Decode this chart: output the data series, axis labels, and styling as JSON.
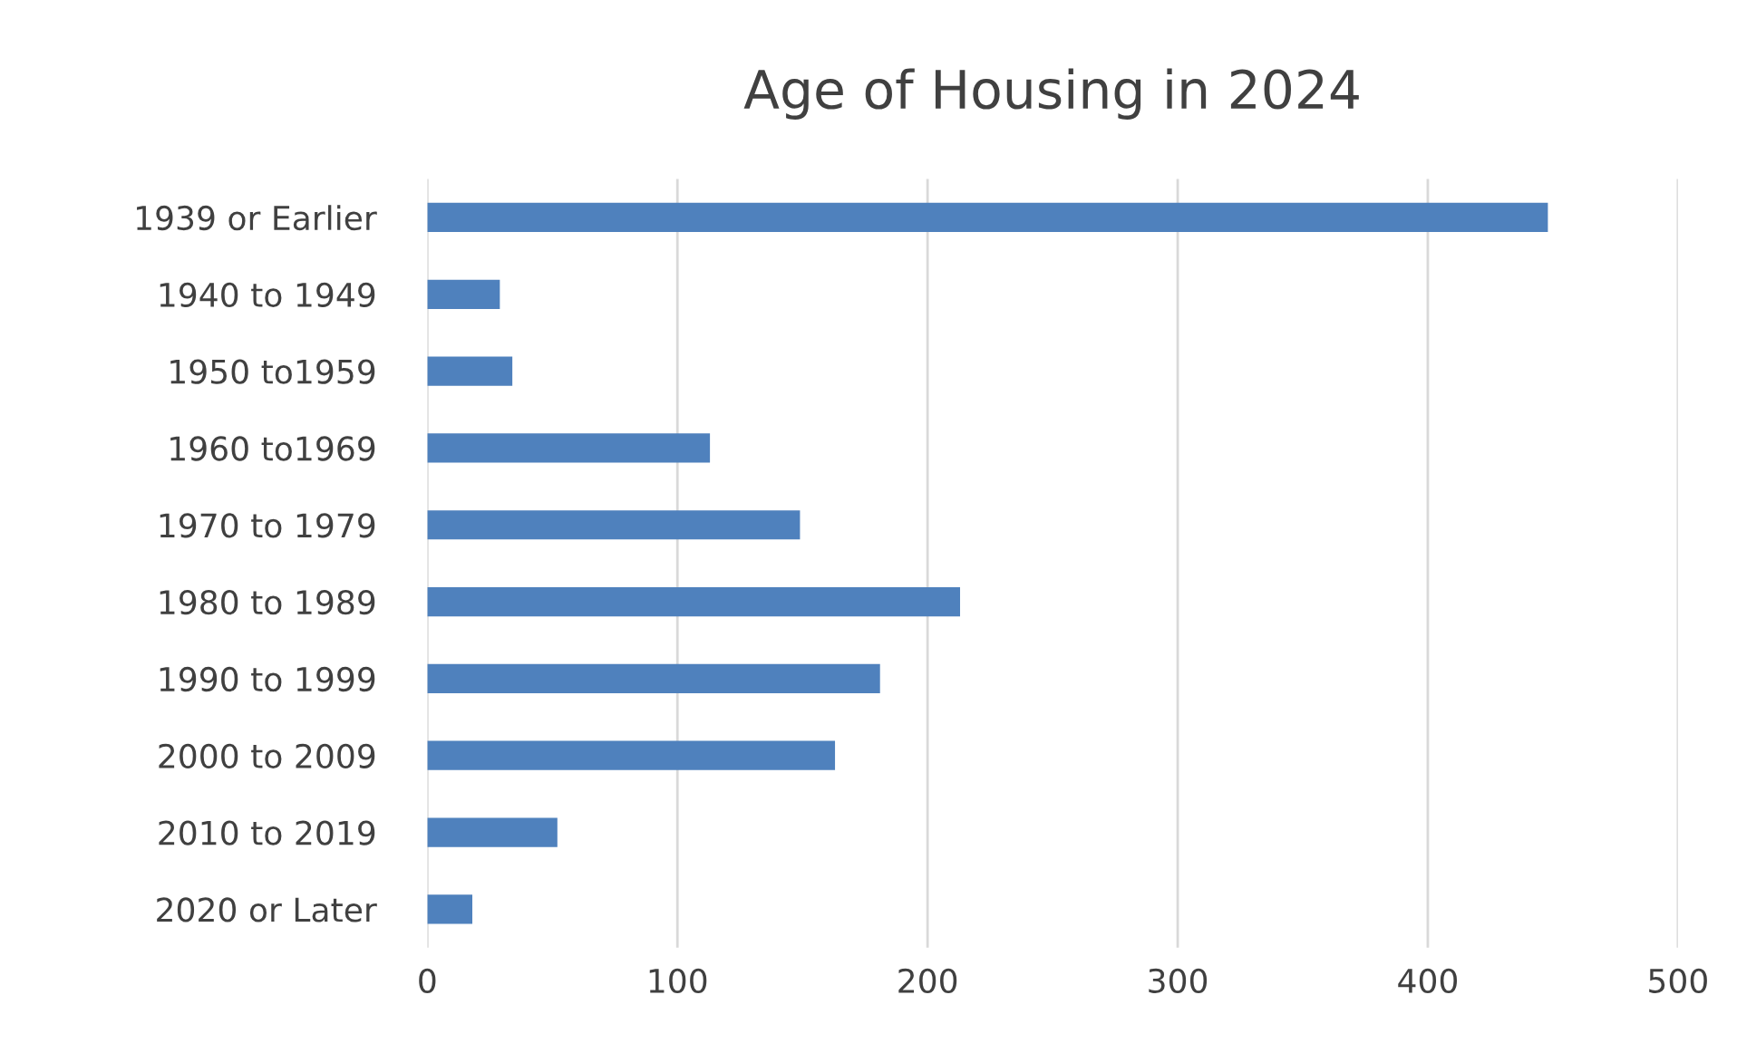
{
  "chart_data": {
    "type": "bar",
    "orientation": "horizontal",
    "title": "Age of Housing in 2024",
    "categories": [
      "1939 or Earlier",
      "1940 to 1949",
      "1950 to1959",
      "1960 to1969",
      "1970 to 1979",
      "1980 to 1989",
      "1990 to 1999",
      "2000 to 2009",
      "2010 to 2019",
      "2020 or Later"
    ],
    "values": [
      448,
      29,
      34,
      113,
      149,
      213,
      181,
      163,
      52,
      18
    ],
    "color": "#4f81bd",
    "xlim": [
      0,
      500
    ],
    "xticks": [
      0,
      100,
      200,
      300,
      400,
      500
    ],
    "grid": "x"
  }
}
